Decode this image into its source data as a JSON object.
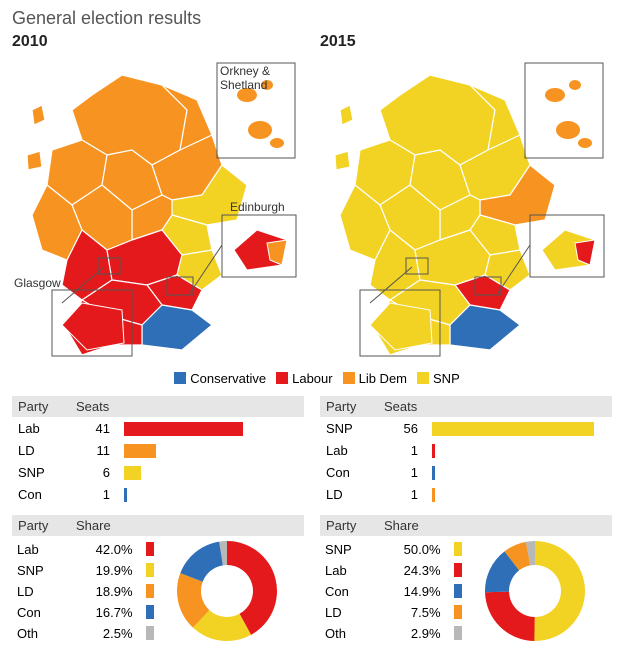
{
  "title": "General election results",
  "parties": {
    "Conservative": {
      "short": "Con",
      "color": "#2e6fb7"
    },
    "Labour": {
      "short": "Lab",
      "color": "#e4191c"
    },
    "Lib Dem": {
      "short": "LD",
      "color": "#f79421"
    },
    "SNP": {
      "short": "SNP",
      "color": "#f2d223"
    },
    "Other": {
      "short": "Oth",
      "color": "#b8b8b8"
    }
  },
  "legend_order": [
    "Conservative",
    "Labour",
    "Lib Dem",
    "SNP"
  ],
  "insets": {
    "orkney_shetland_label": "Orkney &\nShetland",
    "edinburgh_label": "Edinburgh",
    "glasgow_label": "Glasgow"
  },
  "panels": [
    {
      "year": "2010",
      "map_dominant": "Lib Dem",
      "map_central_belt": "Labour",
      "map_border": "Conservative",
      "map_snp_patches": true,
      "seats_header": {
        "party": "Party",
        "seats": "Seats"
      },
      "seats_max": 60,
      "seats": [
        {
          "party": "Lab",
          "value": 41,
          "color": "#e4191c"
        },
        {
          "party": "LD",
          "value": 11,
          "color": "#f79421"
        },
        {
          "party": "SNP",
          "value": 6,
          "color": "#f2d223"
        },
        {
          "party": "Con",
          "value": 1,
          "color": "#2e6fb7"
        }
      ],
      "share_header": {
        "party": "Party",
        "share": "Share"
      },
      "share": [
        {
          "party": "Lab",
          "value": 42.0,
          "color": "#e4191c"
        },
        {
          "party": "SNP",
          "value": 19.9,
          "color": "#f2d223"
        },
        {
          "party": "LD",
          "value": 18.9,
          "color": "#f79421"
        },
        {
          "party": "Con",
          "value": 16.7,
          "color": "#2e6fb7"
        },
        {
          "party": "Oth",
          "value": 2.5,
          "color": "#b8b8b8"
        }
      ],
      "donut": {
        "inner_r": 26,
        "outer_r": 50,
        "start_angle_deg": -90,
        "bg": "#ffffff"
      },
      "show_inset_labels": true
    },
    {
      "year": "2015",
      "map_dominant": "SNP",
      "map_central_belt": "SNP",
      "map_border": "Conservative",
      "map_snp_patches": false,
      "seats_header": {
        "party": "Party",
        "seats": "Seats"
      },
      "seats_max": 60,
      "seats": [
        {
          "party": "SNP",
          "value": 56,
          "color": "#f2d223"
        },
        {
          "party": "Lab",
          "value": 1,
          "color": "#e4191c"
        },
        {
          "party": "Con",
          "value": 1,
          "color": "#2e6fb7"
        },
        {
          "party": "LD",
          "value": 1,
          "color": "#f79421"
        }
      ],
      "share_header": {
        "party": "Party",
        "share": "Share"
      },
      "share": [
        {
          "party": "SNP",
          "value": 50.0,
          "color": "#f2d223"
        },
        {
          "party": "Lab",
          "value": 24.3,
          "color": "#e4191c"
        },
        {
          "party": "Con",
          "value": 14.9,
          "color": "#2e6fb7"
        },
        {
          "party": "LD",
          "value": 7.5,
          "color": "#f79421"
        },
        {
          "party": "Oth",
          "value": 2.9,
          "color": "#b8b8b8"
        }
      ],
      "donut": {
        "inner_r": 26,
        "outer_r": 50,
        "start_angle_deg": -90,
        "bg": "#ffffff"
      },
      "show_inset_labels": false
    }
  ],
  "style": {
    "map_stroke": "#ffffff",
    "inset_border": "#555555",
    "table_header_bg": "#e6e6e6",
    "text_color": "#333333"
  }
}
